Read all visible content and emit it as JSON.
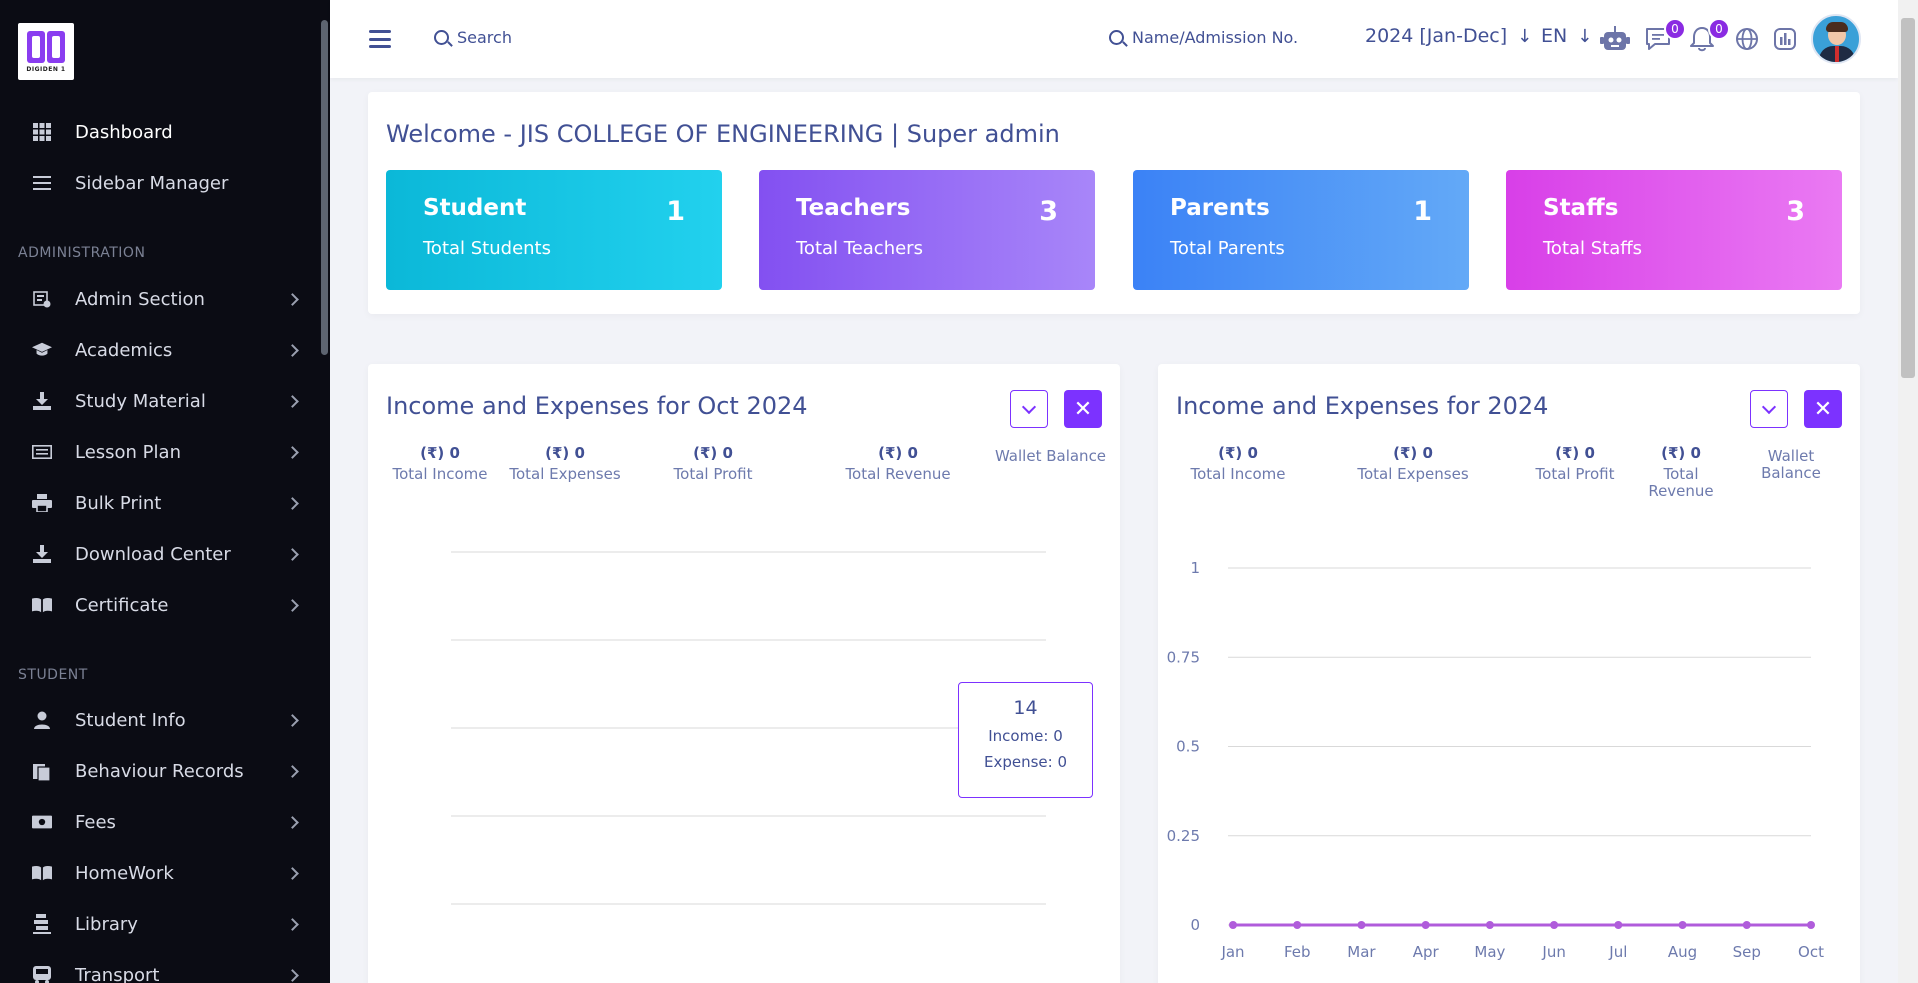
{
  "sidebar": {
    "logo_text": "DIGIDEN 1",
    "primary": [
      {
        "label": "Dashboard",
        "icon": "grid-icon"
      },
      {
        "label": "Sidebar Manager",
        "icon": "list-icon"
      }
    ],
    "sections": [
      {
        "title": "ADMINISTRATION",
        "items": [
          {
            "label": "Admin Section",
            "icon": "admin-icon"
          },
          {
            "label": "Academics",
            "icon": "graduation-cap-icon"
          },
          {
            "label": "Study Material",
            "icon": "download-icon"
          },
          {
            "label": "Lesson Plan",
            "icon": "keyboard-icon"
          },
          {
            "label": "Bulk Print",
            "icon": "printer-icon"
          },
          {
            "label": "Download Center",
            "icon": "download-icon"
          },
          {
            "label": "Certificate",
            "icon": "book-icon"
          }
        ]
      },
      {
        "title": "STUDENT",
        "items": [
          {
            "label": "Student Info",
            "icon": "user-icon"
          },
          {
            "label": "Behaviour Records",
            "icon": "clipboard-icon"
          },
          {
            "label": "Fees",
            "icon": "money-icon"
          },
          {
            "label": "HomeWork",
            "icon": "book-icon"
          },
          {
            "label": "Library",
            "icon": "library-icon"
          },
          {
            "label": "Transport",
            "icon": "bus-icon"
          }
        ]
      }
    ]
  },
  "topbar": {
    "search_placeholder": "Search",
    "student_search_placeholder": "Name/Admission No.",
    "year": "2024 [Jan-Dec]",
    "language": "EN",
    "message_count": "0",
    "notification_count": "0"
  },
  "welcome": {
    "title": "Welcome - JIS COLLEGE OF ENGINEERING | Super admin",
    "stats": [
      {
        "name": "Student",
        "sub": "Total Students",
        "value": "1",
        "color": "#0fc3de"
      },
      {
        "name": "Teachers",
        "sub": "Total Teachers",
        "value": "3",
        "color": "#8b5cf6"
      },
      {
        "name": "Parents",
        "sub": "Total Parents",
        "value": "1",
        "color": "#3b82f6"
      },
      {
        "name": "Staffs",
        "sub": "Total Staffs",
        "value": "3",
        "color": "#d946ef"
      }
    ]
  },
  "monthly": {
    "title": "Income and Expenses for Oct 2024",
    "metrics": [
      {
        "value": "(₹) 0",
        "label": "Total Income"
      },
      {
        "value": "(₹) 0",
        "label": "Total Expenses"
      },
      {
        "value": "(₹) 0",
        "label": "Total Profit"
      },
      {
        "value": "(₹) 0",
        "label": "Total Revenue"
      },
      {
        "value": "",
        "label": "Wallet Balance"
      }
    ],
    "tooltip": {
      "title": "14",
      "income": "Income: 0",
      "expense": "Expense: 0"
    }
  },
  "yearly": {
    "title": "Income and Expenses for 2024",
    "metrics": [
      {
        "value": "(₹) 0",
        "label": "Total Income"
      },
      {
        "value": "(₹) 0",
        "label": "Total Expenses"
      },
      {
        "value": "(₹) 0",
        "label": "Total Profit"
      },
      {
        "value": "(₹) 0",
        "label": "Total Revenue"
      },
      {
        "value": "",
        "label": "Wallet Balance"
      }
    ]
  },
  "chart_data": [
    {
      "type": "line",
      "title": "Income and Expenses for Oct 2024",
      "series": [],
      "grid": true,
      "gridlines": 5
    },
    {
      "type": "line",
      "title": "Income and Expenses for 2024",
      "categories": [
        "Jan",
        "Feb",
        "Mar",
        "Apr",
        "May",
        "Jun",
        "Jul",
        "Aug",
        "Sep",
        "Oct"
      ],
      "series": [
        {
          "values": [
            0,
            0,
            0,
            0,
            0,
            0,
            0,
            0,
            0,
            0
          ],
          "color": "#b05cdb"
        }
      ],
      "ylim": [
        0,
        1
      ],
      "yticks": [
        "0",
        "0.25",
        "0.5",
        "0.75",
        "1"
      ],
      "grid": true
    }
  ]
}
